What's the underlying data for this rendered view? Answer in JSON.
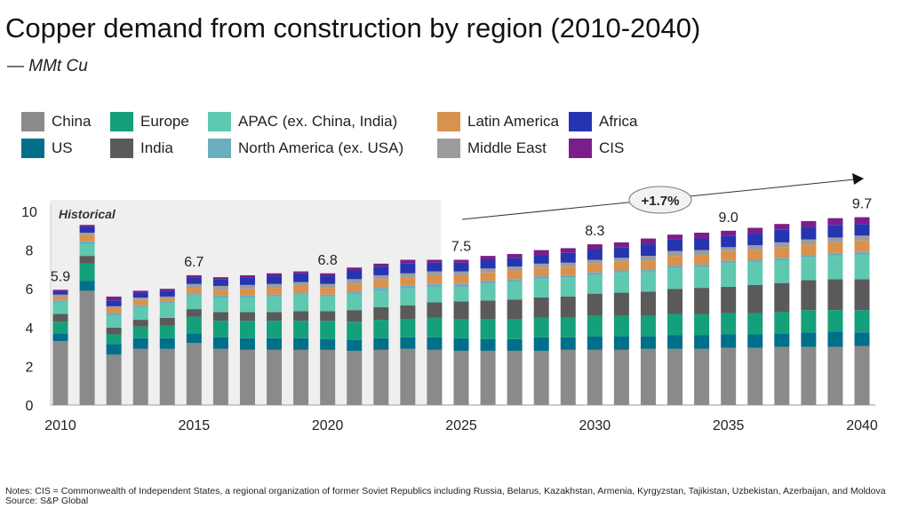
{
  "title": "Copper demand from construction by region (2010-2040)",
  "subtitle": "— MMt Cu",
  "notes": "Notes: CIS = Commonwealth of Independent States, a regional organization of former Soviet Republics including Russia, Belarus, Kazakhstan, Armenia, Kyrgyzstan, Tajikistan, Uzbekistan, Azerbaijan, and Moldova",
  "source": "Source: S&P Global",
  "chart_data": {
    "type": "bar",
    "stacked": true,
    "title": "Copper demand from construction by region (2010-2040)",
    "ylabel": "MMt Cu",
    "ylim": [
      0,
      10
    ],
    "yticks": [
      0,
      2,
      4,
      6,
      8,
      10
    ],
    "xticks": [
      2010,
      2015,
      2020,
      2025,
      2030,
      2035,
      2040
    ],
    "legend_position": "top",
    "grid": false,
    "historical_label": "Historical",
    "historical_range": [
      2010,
      2024
    ],
    "cagr_label": "+1.7%",
    "categories": [
      2010,
      2011,
      2012,
      2013,
      2014,
      2015,
      2016,
      2017,
      2018,
      2019,
      2020,
      2021,
      2022,
      2023,
      2024,
      2025,
      2026,
      2027,
      2028,
      2029,
      2030,
      2031,
      2032,
      2033,
      2034,
      2035,
      2036,
      2037,
      2038,
      2039,
      2040
    ],
    "total_labels": {
      "2010": "5.9",
      "2015": "6.7",
      "2020": "6.8",
      "2025": "7.5",
      "2030": "8.3",
      "2035": "9.0",
      "2040": "9.7"
    },
    "series": [
      {
        "name": "China",
        "color": "#8a8a8a",
        "values": [
          3.3,
          5.9,
          2.6,
          2.9,
          2.9,
          3.2,
          2.9,
          2.85,
          2.85,
          2.85,
          2.85,
          2.8,
          2.85,
          2.9,
          2.85,
          2.8,
          2.8,
          2.8,
          2.8,
          2.85,
          2.85,
          2.85,
          2.9,
          2.9,
          2.9,
          2.95,
          2.95,
          3.0,
          3.0,
          3.0,
          3.05
        ]
      },
      {
        "name": "US",
        "color": "#006f8a",
        "values": [
          0.4,
          0.5,
          0.55,
          0.55,
          0.55,
          0.5,
          0.6,
          0.6,
          0.6,
          0.6,
          0.55,
          0.55,
          0.6,
          0.6,
          0.65,
          0.65,
          0.6,
          0.6,
          0.7,
          0.65,
          0.7,
          0.7,
          0.65,
          0.7,
          0.7,
          0.7,
          0.7,
          0.7,
          0.75,
          0.8,
          0.7
        ]
      },
      {
        "name": "Europe",
        "color": "#14a07a",
        "values": [
          0.6,
          0.9,
          0.5,
          0.6,
          0.65,
          0.85,
          0.85,
          0.9,
          0.9,
          0.9,
          0.95,
          0.95,
          0.95,
          0.95,
          1.0,
          1.0,
          1.05,
          1.05,
          1.0,
          1.0,
          1.05,
          1.05,
          1.05,
          1.1,
          1.1,
          1.1,
          1.1,
          1.1,
          1.15,
          1.1,
          1.15
        ]
      },
      {
        "name": "India",
        "color": "#5a5a5a",
        "values": [
          0.4,
          0.4,
          0.35,
          0.35,
          0.4,
          0.4,
          0.45,
          0.45,
          0.45,
          0.5,
          0.5,
          0.6,
          0.65,
          0.7,
          0.8,
          0.9,
          0.95,
          1.0,
          1.05,
          1.1,
          1.15,
          1.2,
          1.25,
          1.3,
          1.35,
          1.35,
          1.45,
          1.5,
          1.55,
          1.6,
          1.6
        ]
      },
      {
        "name": "APAC (ex. China, India)",
        "color": "#5fc8b0",
        "values": [
          0.6,
          0.6,
          0.6,
          0.65,
          0.75,
          0.7,
          0.75,
          0.75,
          0.8,
          0.85,
          0.75,
          0.8,
          0.85,
          0.85,
          0.8,
          0.75,
          0.85,
          0.9,
          0.95,
          0.95,
          0.95,
          1.0,
          1.0,
          1.05,
          1.05,
          1.2,
          1.15,
          1.15,
          1.15,
          1.2,
          1.25
        ]
      },
      {
        "name": "North America (ex. USA)",
        "color": "#6aaec0",
        "values": [
          0.1,
          0.15,
          0.15,
          0.1,
          0.1,
          0.1,
          0.1,
          0.1,
          0.1,
          0.1,
          0.1,
          0.15,
          0.15,
          0.15,
          0.15,
          0.15,
          0.15,
          0.15,
          0.15,
          0.15,
          0.15,
          0.15,
          0.15,
          0.15,
          0.15,
          0.15,
          0.15,
          0.15,
          0.15,
          0.15,
          0.15
        ]
      },
      {
        "name": "Latin America",
        "color": "#d8924d",
        "values": [
          0.2,
          0.35,
          0.25,
          0.3,
          0.15,
          0.3,
          0.3,
          0.35,
          0.35,
          0.35,
          0.35,
          0.4,
          0.45,
          0.45,
          0.45,
          0.45,
          0.45,
          0.45,
          0.45,
          0.45,
          0.45,
          0.45,
          0.45,
          0.5,
          0.5,
          0.5,
          0.5,
          0.55,
          0.55,
          0.55,
          0.6
        ]
      },
      {
        "name": "Middle East",
        "color": "#9c9c9c",
        "values": [
          0.1,
          0.1,
          0.1,
          0.1,
          0.1,
          0.2,
          0.2,
          0.2,
          0.2,
          0.2,
          0.2,
          0.25,
          0.2,
          0.2,
          0.2,
          0.2,
          0.2,
          0.2,
          0.2,
          0.2,
          0.2,
          0.2,
          0.25,
          0.25,
          0.25,
          0.2,
          0.25,
          0.25,
          0.25,
          0.25,
          0.25
        ]
      },
      {
        "name": "Africa",
        "color": "#2535b0",
        "values": [
          0.15,
          0.3,
          0.3,
          0.25,
          0.3,
          0.35,
          0.35,
          0.4,
          0.4,
          0.45,
          0.4,
          0.45,
          0.45,
          0.5,
          0.45,
          0.45,
          0.45,
          0.45,
          0.45,
          0.5,
          0.55,
          0.55,
          0.6,
          0.6,
          0.6,
          0.6,
          0.6,
          0.65,
          0.65,
          0.65,
          0.6
        ]
      },
      {
        "name": "CIS",
        "color": "#7a1f8a",
        "values": [
          0.1,
          0.1,
          0.2,
          0.1,
          0.1,
          0.1,
          0.1,
          0.1,
          0.15,
          0.1,
          0.15,
          0.15,
          0.15,
          0.2,
          0.15,
          0.15,
          0.2,
          0.2,
          0.25,
          0.25,
          0.25,
          0.25,
          0.3,
          0.25,
          0.3,
          0.25,
          0.3,
          0.3,
          0.3,
          0.35,
          0.35
        ]
      }
    ]
  }
}
